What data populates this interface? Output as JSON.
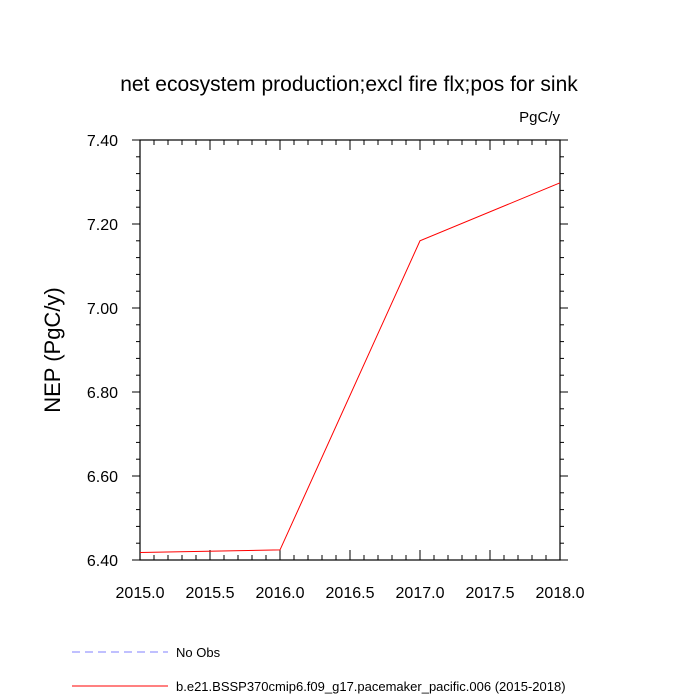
{
  "chart_data": {
    "type": "line",
    "title": "net ecosystem production;excl fire flx;pos for sink",
    "units_label": "PgC/y",
    "ylabel": "NEP  (PgC/y)",
    "xlabel": "",
    "xlim": [
      2015.0,
      2018.0
    ],
    "ylim": [
      6.4,
      7.4
    ],
    "x_ticks": [
      2015.0,
      2015.5,
      2016.0,
      2016.5,
      2017.0,
      2017.5,
      2018.0
    ],
    "x_tick_labels": [
      "2015.0",
      "2015.5",
      "2016.0",
      "2016.5",
      "2017.0",
      "2017.5",
      "2018.0"
    ],
    "y_ticks": [
      6.4,
      6.6,
      6.8,
      7.0,
      7.2,
      7.4
    ],
    "y_tick_labels": [
      "6.40",
      "6.60",
      "6.80",
      "7.00",
      "7.20",
      "7.40"
    ],
    "grid": false,
    "legend_position": "bottom-left",
    "series": [
      {
        "name": "b.e21.BSSP370cmip6.f09_g17.pacemaker_pacific.006 (2015-2018)",
        "color": "#ff0000",
        "dash": "solid",
        "x": [
          2015.0,
          2016.0,
          2017.0,
          2018.0
        ],
        "y": [
          6.418,
          6.424,
          7.16,
          7.298
        ]
      }
    ],
    "legend": [
      {
        "label": "No Obs",
        "color": "#8080ff",
        "dash": "dashed"
      },
      {
        "label": "b.e21.BSSP370cmip6.f09_g17.pacemaker_pacific.006 (2015-2018)",
        "color": "#ff0000",
        "dash": "solid"
      }
    ]
  }
}
